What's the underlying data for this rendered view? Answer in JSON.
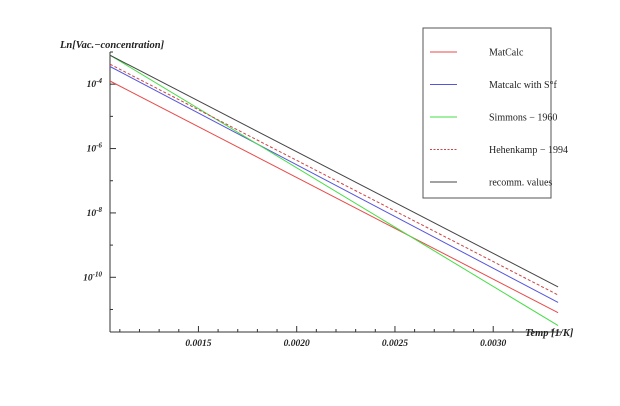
{
  "chart_data": {
    "type": "line",
    "ylabel": "Ln[Vac.−concentration]",
    "xlabel": "Temp [1/K]",
    "xlim": [
      0.00105,
      0.00335
    ],
    "ylim": [
      -11.7,
      -3.0
    ],
    "yscale": "log",
    "grid": false,
    "legend_position": "top-right",
    "x_ticks": [
      {
        "value": 0.0015,
        "label": "0.0015"
      },
      {
        "value": 0.002,
        "label": "0.0020"
      },
      {
        "value": 0.0025,
        "label": "0.0025"
      },
      {
        "value": 0.003,
        "label": "0.0030"
      }
    ],
    "y_ticks": [
      {
        "value": -4,
        "base": "10",
        "exp": "-4"
      },
      {
        "value": -6,
        "base": "10",
        "exp": "-6"
      },
      {
        "value": -8,
        "base": "10",
        "exp": "-8"
      },
      {
        "value": -10,
        "base": "10",
        "exp": "-10"
      }
    ],
    "series": [
      {
        "name": "MatCalc",
        "color": "#e84a4a",
        "dash": "solid",
        "x": [
          0.00105,
          0.00333
        ],
        "y": [
          -3.9,
          -11.1
        ]
      },
      {
        "name": "Matcalc with S°f",
        "color": "#5555dd",
        "dash": "solid",
        "x": [
          0.00105,
          0.00333
        ],
        "y": [
          -3.45,
          -10.78
        ]
      },
      {
        "name": "Simmons − 1960",
        "color": "#44dd44",
        "dash": "solid",
        "x": [
          0.00105,
          0.00333
        ],
        "y": [
          -3.1,
          -11.5
        ]
      },
      {
        "name": "Hehenkamp − 1994",
        "color": "#cc4444",
        "dash": "dashed",
        "x": [
          0.00105,
          0.00333
        ],
        "y": [
          -3.38,
          -10.55
        ]
      },
      {
        "name": "recomm. values",
        "color": "#444444",
        "dash": "solid",
        "x": [
          0.00105,
          0.00333
        ],
        "y": [
          -3.1,
          -10.3
        ]
      }
    ]
  }
}
